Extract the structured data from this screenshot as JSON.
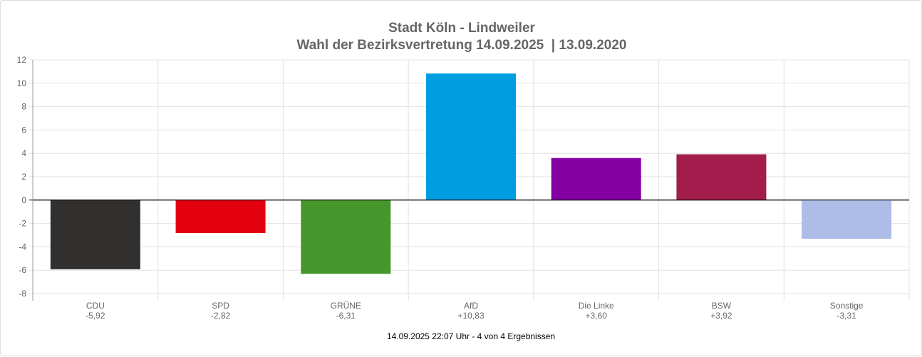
{
  "chart_data": {
    "type": "bar",
    "title": [
      "Stadt Köln - Lindweiler",
      "Wahl der Bezirksvertretung 14.09.2025  | 13.09.2020"
    ],
    "categories": [
      "CDU",
      "SPD",
      "GRÜNE",
      "AfD",
      "Die Linke",
      "BSW",
      "Sonstige"
    ],
    "values": [
      -5.92,
      -2.82,
      -6.31,
      10.83,
      3.6,
      3.92,
      -3.31
    ],
    "value_labels": [
      "-5,92",
      "-2,82",
      "-6,31",
      "+10,83",
      "+3,60",
      "+3,92",
      "-3,31"
    ],
    "colors": [
      "#32302e",
      "#e3000f",
      "#46962b",
      "#009ee0",
      "#8500a3",
      "#a31d4c",
      "#adbde8"
    ],
    "ylim": [
      -8,
      12
    ],
    "yticks": [
      12,
      10,
      8,
      6,
      4,
      2,
      0,
      -2,
      -4,
      -6,
      -8
    ],
    "grid": true,
    "legend": "none"
  },
  "footer": "14.09.2025 22:07 Uhr - 4 von 4 Ergebnissen"
}
